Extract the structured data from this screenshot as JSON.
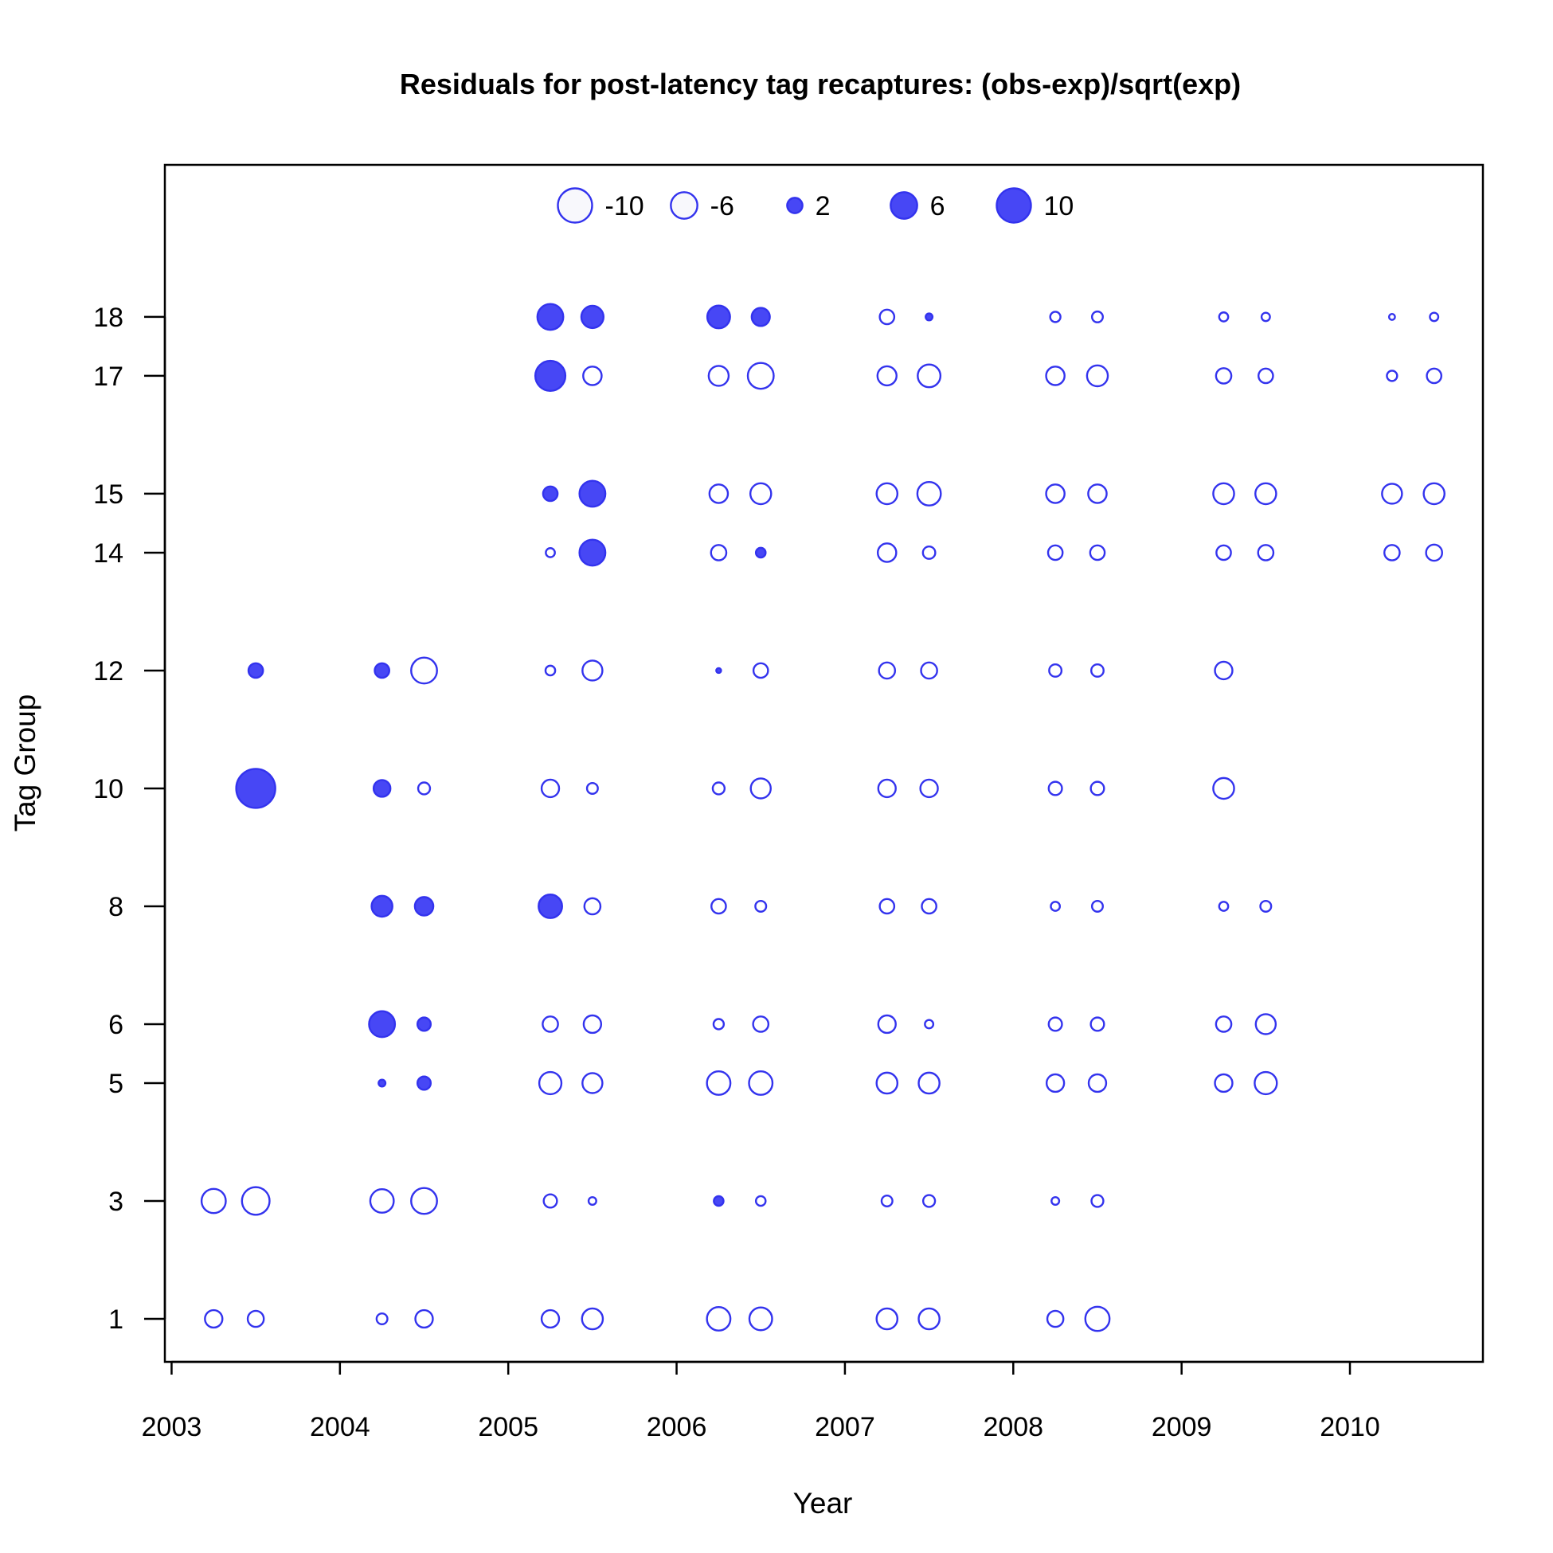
{
  "chart_data": {
    "type": "scatter",
    "title": "Residuals for post-latency tag recaptures: (obs-exp)/sqrt(exp)",
    "xlabel": "Year",
    "ylabel": "Tag Group",
    "xlim": [
      2002.96,
      2010.79
    ],
    "ylim": [
      0.27,
      20.58
    ],
    "x_ticks": [
      2003,
      2004,
      2005,
      2006,
      2007,
      2008,
      2009,
      2010
    ],
    "y_ticks": [
      1,
      3,
      5,
      6,
      8,
      10,
      12,
      14,
      15,
      17,
      18
    ],
    "encoding": "bubble area proportional to |residual|; filled blue = positive, open = negative",
    "colors": {
      "positive_fill": "#4747f5",
      "stroke": "#3333ee",
      "negative_fill": "#ffffff"
    },
    "legend": {
      "position": "top-center",
      "entries": [
        {
          "label": "-10",
          "value": -10
        },
        {
          "label": "-6",
          "value": -6
        },
        {
          "label": "2",
          "value": 2
        },
        {
          "label": "6",
          "value": 6
        },
        {
          "label": "10",
          "value": 10
        }
      ]
    },
    "points": [
      {
        "x": 2005.25,
        "y": 18,
        "r": 5.7
      },
      {
        "x": 2005.5,
        "y": 18,
        "r": 4.2
      },
      {
        "x": 2006.25,
        "y": 18,
        "r": 4.4
      },
      {
        "x": 2006.5,
        "y": 18,
        "r": 2.8
      },
      {
        "x": 2007.25,
        "y": 18,
        "r": -1.8
      },
      {
        "x": 2007.5,
        "y": 18,
        "r": 0.4
      },
      {
        "x": 2008.25,
        "y": 18,
        "r": -0.9
      },
      {
        "x": 2008.5,
        "y": 18,
        "r": -1.0
      },
      {
        "x": 2009.25,
        "y": 18,
        "r": -0.7
      },
      {
        "x": 2009.5,
        "y": 18,
        "r": -0.6
      },
      {
        "x": 2010.25,
        "y": 18,
        "r": -0.3
      },
      {
        "x": 2010.5,
        "y": 18,
        "r": -0.6
      },
      {
        "x": 2005.25,
        "y": 17,
        "r": 7.7
      },
      {
        "x": 2005.5,
        "y": 17,
        "r": -2.9
      },
      {
        "x": 2006.25,
        "y": 17,
        "r": -3.4
      },
      {
        "x": 2006.5,
        "y": 17,
        "r": -5.7
      },
      {
        "x": 2007.25,
        "y": 17,
        "r": -3.1
      },
      {
        "x": 2007.5,
        "y": 17,
        "r": -4.4
      },
      {
        "x": 2008.25,
        "y": 17,
        "r": -2.9
      },
      {
        "x": 2008.5,
        "y": 17,
        "r": -3.7
      },
      {
        "x": 2009.25,
        "y": 17,
        "r": -2.0
      },
      {
        "x": 2009.5,
        "y": 17,
        "r": -1.8
      },
      {
        "x": 2010.25,
        "y": 17,
        "r": -0.9
      },
      {
        "x": 2010.5,
        "y": 17,
        "r": -1.8
      },
      {
        "x": 2005.25,
        "y": 15,
        "r": 1.8
      },
      {
        "x": 2005.5,
        "y": 15,
        "r": 5.7
      },
      {
        "x": 2006.25,
        "y": 15,
        "r": -2.9
      },
      {
        "x": 2006.5,
        "y": 15,
        "r": -3.7
      },
      {
        "x": 2007.25,
        "y": 15,
        "r": -3.7
      },
      {
        "x": 2007.5,
        "y": 15,
        "r": -4.7
      },
      {
        "x": 2008.25,
        "y": 15,
        "r": -2.9
      },
      {
        "x": 2008.5,
        "y": 15,
        "r": -2.9
      },
      {
        "x": 2009.25,
        "y": 15,
        "r": -3.7
      },
      {
        "x": 2009.5,
        "y": 15,
        "r": -3.7
      },
      {
        "x": 2010.25,
        "y": 15,
        "r": -3.4
      },
      {
        "x": 2010.5,
        "y": 15,
        "r": -3.7
      },
      {
        "x": 2005.25,
        "y": 14,
        "r": -0.7
      },
      {
        "x": 2005.5,
        "y": 14,
        "r": 5.7
      },
      {
        "x": 2006.25,
        "y": 14,
        "r": -2.0
      },
      {
        "x": 2006.5,
        "y": 14,
        "r": 0.8
      },
      {
        "x": 2007.25,
        "y": 14,
        "r": -2.9
      },
      {
        "x": 2007.5,
        "y": 14,
        "r": -1.3
      },
      {
        "x": 2008.25,
        "y": 14,
        "r": -1.8
      },
      {
        "x": 2008.5,
        "y": 14,
        "r": -1.8
      },
      {
        "x": 2009.25,
        "y": 14,
        "r": -1.8
      },
      {
        "x": 2009.5,
        "y": 14,
        "r": -2.0
      },
      {
        "x": 2010.25,
        "y": 14,
        "r": -2.0
      },
      {
        "x": 2010.5,
        "y": 14,
        "r": -2.2
      },
      {
        "x": 2003.5,
        "y": 12,
        "r": 1.8
      },
      {
        "x": 2004.25,
        "y": 12,
        "r": 1.8
      },
      {
        "x": 2004.5,
        "y": 12,
        "r": -5.7
      },
      {
        "x": 2005.25,
        "y": 12,
        "r": -0.8
      },
      {
        "x": 2005.5,
        "y": 12,
        "r": -3.4
      },
      {
        "x": 2006.25,
        "y": 12,
        "r": 0.2
      },
      {
        "x": 2006.5,
        "y": 12,
        "r": -1.8
      },
      {
        "x": 2007.25,
        "y": 12,
        "r": -2.2
      },
      {
        "x": 2007.5,
        "y": 12,
        "r": -2.2
      },
      {
        "x": 2008.25,
        "y": 12,
        "r": -1.3
      },
      {
        "x": 2008.5,
        "y": 12,
        "r": -1.3
      },
      {
        "x": 2009.25,
        "y": 12,
        "r": -2.6
      },
      {
        "x": 2003.5,
        "y": 10,
        "r": 13.0
      },
      {
        "x": 2004.25,
        "y": 10,
        "r": 2.4
      },
      {
        "x": 2004.5,
        "y": 10,
        "r": -1.2
      },
      {
        "x": 2005.25,
        "y": 10,
        "r": -2.6
      },
      {
        "x": 2005.5,
        "y": 10,
        "r": -1.0
      },
      {
        "x": 2006.25,
        "y": 10,
        "r": -1.2
      },
      {
        "x": 2006.5,
        "y": 10,
        "r": -3.4
      },
      {
        "x": 2007.25,
        "y": 10,
        "r": -2.6
      },
      {
        "x": 2007.5,
        "y": 10,
        "r": -2.6
      },
      {
        "x": 2008.25,
        "y": 10,
        "r": -1.5
      },
      {
        "x": 2008.5,
        "y": 10,
        "r": -1.5
      },
      {
        "x": 2009.25,
        "y": 10,
        "r": -3.7
      },
      {
        "x": 2004.25,
        "y": 8,
        "r": 3.7
      },
      {
        "x": 2004.5,
        "y": 8,
        "r": 2.9
      },
      {
        "x": 2005.25,
        "y": 8,
        "r": 4.7
      },
      {
        "x": 2005.5,
        "y": 8,
        "r": -2.2
      },
      {
        "x": 2006.25,
        "y": 8,
        "r": -1.8
      },
      {
        "x": 2006.5,
        "y": 8,
        "r": -1.0
      },
      {
        "x": 2007.25,
        "y": 8,
        "r": -1.8
      },
      {
        "x": 2007.5,
        "y": 8,
        "r": -1.8
      },
      {
        "x": 2008.25,
        "y": 8,
        "r": -0.7
      },
      {
        "x": 2008.5,
        "y": 8,
        "r": -1.0
      },
      {
        "x": 2009.25,
        "y": 8,
        "r": -0.7
      },
      {
        "x": 2009.5,
        "y": 8,
        "r": -1.0
      },
      {
        "x": 2004.25,
        "y": 6,
        "r": 5.7
      },
      {
        "x": 2004.5,
        "y": 6,
        "r": 1.5
      },
      {
        "x": 2005.25,
        "y": 6,
        "r": -2.0
      },
      {
        "x": 2005.5,
        "y": 6,
        "r": -2.6
      },
      {
        "x": 2006.25,
        "y": 6,
        "r": -0.9
      },
      {
        "x": 2006.5,
        "y": 6,
        "r": -2.0
      },
      {
        "x": 2007.25,
        "y": 6,
        "r": -2.6
      },
      {
        "x": 2007.5,
        "y": 6,
        "r": -0.6
      },
      {
        "x": 2008.25,
        "y": 6,
        "r": -1.5
      },
      {
        "x": 2008.5,
        "y": 6,
        "r": -1.5
      },
      {
        "x": 2009.25,
        "y": 6,
        "r": -2.0
      },
      {
        "x": 2009.5,
        "y": 6,
        "r": -3.4
      },
      {
        "x": 2004.25,
        "y": 5,
        "r": 0.4
      },
      {
        "x": 2004.5,
        "y": 5,
        "r": 1.5
      },
      {
        "x": 2005.25,
        "y": 5,
        "r": -4.2
      },
      {
        "x": 2005.5,
        "y": 5,
        "r": -3.4
      },
      {
        "x": 2006.25,
        "y": 5,
        "r": -4.7
      },
      {
        "x": 2006.5,
        "y": 5,
        "r": -4.7
      },
      {
        "x": 2007.25,
        "y": 5,
        "r": -3.7
      },
      {
        "x": 2007.5,
        "y": 5,
        "r": -3.7
      },
      {
        "x": 2008.25,
        "y": 5,
        "r": -2.6
      },
      {
        "x": 2008.5,
        "y": 5,
        "r": -2.6
      },
      {
        "x": 2009.25,
        "y": 5,
        "r": -2.6
      },
      {
        "x": 2009.5,
        "y": 5,
        "r": -4.2
      },
      {
        "x": 2003.25,
        "y": 3,
        "r": -5.0
      },
      {
        "x": 2003.5,
        "y": 3,
        "r": -6.5
      },
      {
        "x": 2004.25,
        "y": 3,
        "r": -4.7
      },
      {
        "x": 2004.5,
        "y": 3,
        "r": -5.7
      },
      {
        "x": 2005.25,
        "y": 3,
        "r": -1.5
      },
      {
        "x": 2005.5,
        "y": 3,
        "r": -0.5
      },
      {
        "x": 2006.25,
        "y": 3,
        "r": 0.8
      },
      {
        "x": 2006.5,
        "y": 3,
        "r": -0.8
      },
      {
        "x": 2007.25,
        "y": 3,
        "r": -1.0
      },
      {
        "x": 2007.5,
        "y": 3,
        "r": -1.2
      },
      {
        "x": 2008.25,
        "y": 3,
        "r": -0.5
      },
      {
        "x": 2008.5,
        "y": 3,
        "r": -1.2
      },
      {
        "x": 2003.25,
        "y": 1,
        "r": -2.6
      },
      {
        "x": 2003.5,
        "y": 1,
        "r": -2.2
      },
      {
        "x": 2004.25,
        "y": 1,
        "r": -1.0
      },
      {
        "x": 2004.5,
        "y": 1,
        "r": -2.6
      },
      {
        "x": 2005.25,
        "y": 1,
        "r": -2.6
      },
      {
        "x": 2005.5,
        "y": 1,
        "r": -3.7
      },
      {
        "x": 2006.25,
        "y": 1,
        "r": -4.7
      },
      {
        "x": 2006.5,
        "y": 1,
        "r": -4.4
      },
      {
        "x": 2007.25,
        "y": 1,
        "r": -3.7
      },
      {
        "x": 2007.5,
        "y": 1,
        "r": -3.7
      },
      {
        "x": 2008.25,
        "y": 1,
        "r": -2.2
      },
      {
        "x": 2008.5,
        "y": 1,
        "r": -5.0
      }
    ]
  }
}
